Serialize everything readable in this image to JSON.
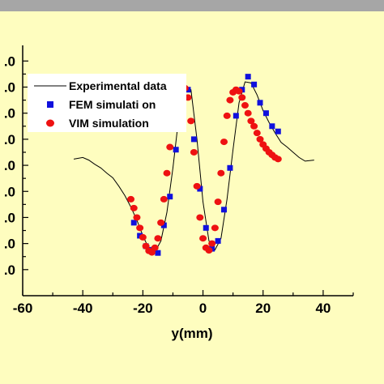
{
  "chart_data": {
    "type": "line",
    "xlabel": "y(mm)",
    "ylabel": "",
    "xlim": [
      -60,
      50
    ],
    "ylim": [
      -1.5,
      3.3
    ],
    "x_ticks": [
      -60,
      -40,
      -20,
      0,
      20,
      40
    ],
    "x_tick_labels": [
      "-60",
      "-40",
      "-20",
      "0",
      "20",
      "40"
    ],
    "y_ticks": [
      -1.0,
      -0.5,
      0.0,
      0.5,
      1.0,
      1.5,
      2.0,
      2.5,
      3.0
    ],
    "y_tick_labels": [
      ".0",
      ".0",
      ".0",
      ".0",
      ".0",
      ".0",
      ".0",
      ".0",
      ".0"
    ],
    "grid": false,
    "legend_placement": "top-left",
    "series": [
      {
        "name": "Experimental data",
        "style": "line",
        "color": "#000000",
        "x": [
          -43,
          -40,
          -38,
          -36,
          -34,
          -32,
          -30,
          -28,
          -26,
          -24,
          -22,
          -20,
          -18,
          -16,
          -14,
          -12,
          -10,
          -8,
          -6,
          -4,
          -2,
          0,
          2,
          4,
          6,
          8,
          10,
          12,
          14,
          16,
          18,
          20,
          22,
          24,
          26,
          28,
          30,
          32,
          34,
          37
        ],
        "y": [
          1.12,
          1.15,
          1.1,
          1.02,
          0.95,
          0.85,
          0.76,
          0.6,
          0.42,
          0.2,
          -0.05,
          -0.35,
          -0.6,
          -0.66,
          -0.45,
          0.1,
          0.95,
          1.95,
          2.55,
          2.45,
          1.5,
          0.3,
          -0.45,
          -0.62,
          -0.4,
          0.35,
          1.3,
          2.2,
          2.6,
          2.58,
          2.35,
          2.05,
          1.82,
          1.62,
          1.44,
          1.35,
          1.25,
          1.15,
          1.08,
          1.1
        ]
      },
      {
        "name": "FEM simulati on",
        "style": "square",
        "color": "#1010dd",
        "x": [
          -23,
          -21,
          -19,
          -17,
          -15,
          -13,
          -11,
          -9,
          -7,
          -5,
          -3,
          -1,
          1,
          3,
          5,
          7,
          9,
          11,
          13,
          15,
          17,
          19,
          21,
          23,
          25
        ],
        "y": [
          -0.1,
          -0.35,
          -0.55,
          -0.62,
          -0.68,
          -0.15,
          0.4,
          1.3,
          1.95,
          2.45,
          1.5,
          0.55,
          -0.2,
          -0.6,
          -0.45,
          0.15,
          0.95,
          1.95,
          2.45,
          2.7,
          2.55,
          2.2,
          2.0,
          1.75,
          1.65
        ]
      },
      {
        "name": "VIM simulation",
        "style": "circle",
        "color": "#ee1111",
        "x": [
          -24,
          -23,
          -22,
          -21,
          -20,
          -19,
          -18,
          -17,
          -16,
          -15,
          -14,
          -13,
          -12,
          -11,
          -10,
          -9,
          -8,
          -7,
          -6,
          -5,
          -4,
          -3,
          -2,
          -1,
          0,
          1,
          2,
          3,
          4,
          5,
          6,
          7,
          8,
          9,
          10,
          11,
          12,
          13,
          14,
          15,
          16,
          17,
          18,
          19,
          20,
          21,
          22,
          23,
          24,
          25
        ],
        "y": [
          0.35,
          0.18,
          0.0,
          -0.2,
          -0.38,
          -0.55,
          -0.64,
          -0.67,
          -0.58,
          -0.4,
          -0.1,
          0.35,
          0.85,
          1.35,
          1.85,
          2.2,
          2.4,
          2.5,
          2.48,
          2.3,
          1.85,
          1.25,
          0.6,
          0.0,
          -0.4,
          -0.58,
          -0.63,
          -0.5,
          -0.2,
          0.3,
          0.85,
          1.45,
          1.95,
          2.25,
          2.4,
          2.45,
          2.42,
          2.3,
          2.15,
          2.0,
          1.85,
          1.75,
          1.62,
          1.5,
          1.4,
          1.32,
          1.25,
          1.2,
          1.15,
          1.12
        ]
      }
    ]
  }
}
